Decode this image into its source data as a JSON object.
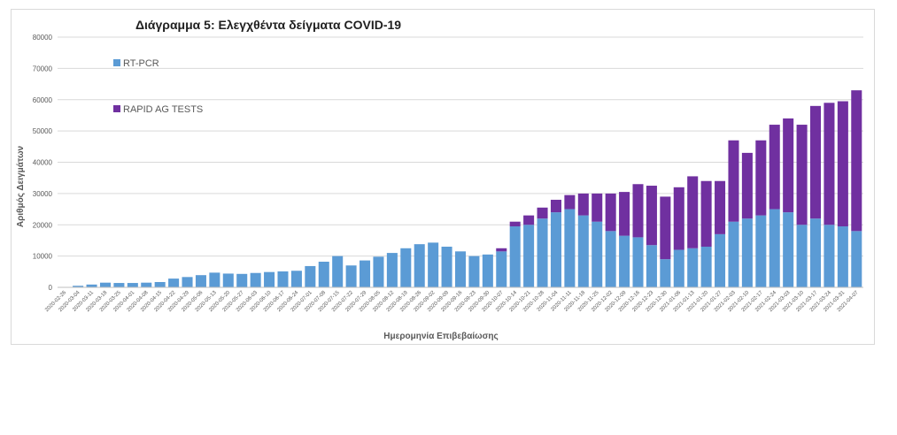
{
  "chart_data": {
    "type": "bar",
    "stacked": true,
    "title": "Διάγραμμα 5: Ελεγχθέντα  δείγματα COVID-19",
    "xlabel": "Ημερομηνία Επιβεβαίωσης",
    "ylabel": "Αριθμός Δειγμάτων",
    "ylim": [
      0,
      80000
    ],
    "y_ticks": [
      "0",
      "10000",
      "20000",
      "30000",
      "40000",
      "50000",
      "60000",
      "70000",
      "80000"
    ],
    "grid": true,
    "legend_position": "top-left",
    "x_ticks": [
      "2020-02-26",
      "2020-03-04",
      "2020-03-11",
      "2020-03-18",
      "2020-03-25",
      "2020-04-01",
      "2020-04-08",
      "2020-04-15",
      "2020-04-22",
      "2020-04-29",
      "2020-05-06",
      "2020-05-13",
      "2020-05-20",
      "2020-05-27",
      "2020-06-03",
      "2020-06-10",
      "2020-06-17",
      "2020-06-24",
      "2020-07-01",
      "2020-07-08",
      "2020-07-15",
      "2020-07-22",
      "2020-07-29",
      "2020-08-05",
      "2020-08-12",
      "2020-08-19",
      "2020-08-26",
      "2020-09-02",
      "2020-09-09",
      "2020-09-16",
      "2020-09-23",
      "2020-09-30",
      "2020-10-07",
      "2020-10-14",
      "2020-10-21",
      "2020-10-28",
      "2020-11-04",
      "2020-11-11",
      "2020-11-18",
      "2020-11-25",
      "2020-12-02",
      "2020-12-09",
      "2020-12-16",
      "2020-12-23",
      "2020-12-30",
      "2021-01-06",
      "2021-01-13",
      "2021-01-20",
      "2021-01-27",
      "2021-02-03",
      "2021-02-10",
      "2021-02-17",
      "2021-02-24",
      "2021-03-03",
      "2021-03-10",
      "2021-03-17",
      "2021-03-24",
      "2021-03-31",
      "2021-04-07"
    ],
    "series": [
      {
        "name": "RT-PCR",
        "color": "#5b9bd5",
        "weekly_values": [
          100,
          500,
          900,
          1500,
          1400,
          1400,
          1500,
          1700,
          2800,
          3300,
          3900,
          4700,
          4400,
          4300,
          4600,
          4900,
          5100,
          5300,
          6800,
          8200,
          10000,
          7000,
          8600,
          9800,
          11000,
          12500,
          13800,
          14300,
          13000,
          11500,
          10000,
          10500,
          11500,
          19500,
          20000,
          22000,
          24000,
          25000,
          23000,
          21000,
          18000,
          16500,
          16000,
          13500,
          9000,
          12000,
          12500,
          13000,
          17000,
          21000,
          22000,
          23000,
          25000,
          24000,
          20000,
          22000,
          20000,
          19500,
          18000
        ]
      },
      {
        "name": "RAPID AG TESTS",
        "color": "#7030a0",
        "weekly_values": [
          0,
          0,
          0,
          0,
          0,
          0,
          0,
          0,
          0,
          0,
          0,
          0,
          0,
          0,
          0,
          0,
          0,
          0,
          0,
          0,
          0,
          0,
          0,
          0,
          0,
          0,
          0,
          0,
          0,
          0,
          0,
          0,
          1000,
          1500,
          3000,
          3500,
          4000,
          4500,
          7000,
          9000,
          12000,
          14000,
          17000,
          19000,
          20000,
          20000,
          23000,
          21000,
          17000,
          26000,
          21000,
          24000,
          27000,
          30000,
          32000,
          36000,
          39000,
          40000,
          45000
        ]
      }
    ]
  }
}
